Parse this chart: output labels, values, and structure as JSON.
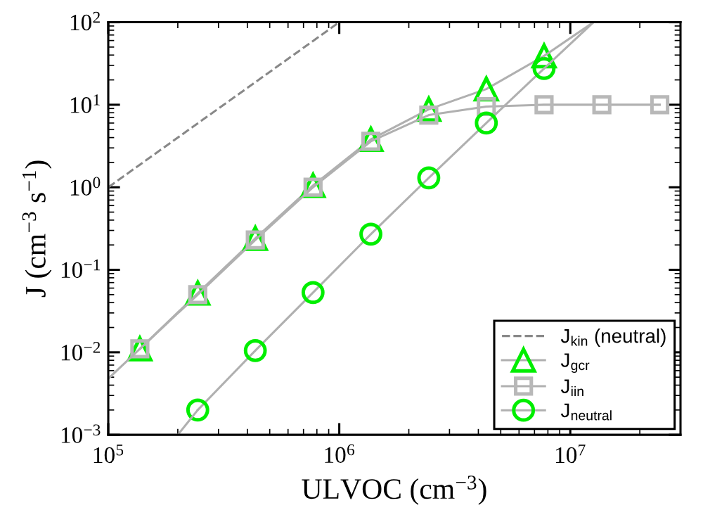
{
  "chart_data": {
    "type": "line",
    "log": "xy",
    "xlabel": "ULVOC (cm$^{−3}$)",
    "ylabel": "J (cm$^{−3}$ s$^{−1}$)",
    "xlim": [
      100000,
      30000000
    ],
    "ylim": [
      0.001,
      100
    ],
    "xticks": [
      {
        "value": 100000,
        "label": "10$^{5}$"
      },
      {
        "value": 1000000,
        "label": "10$^{6}$"
      },
      {
        "value": 10000000,
        "label": "10$^{7}$"
      }
    ],
    "yticks": [
      {
        "value": 0.001,
        "label": "10$^{−3}$"
      },
      {
        "value": 0.01,
        "label": "10$^{−2}$"
      },
      {
        "value": 0.1,
        "label": "10$^{−1}$"
      },
      {
        "value": 1,
        "label": "10$^{0}$"
      },
      {
        "value": 10,
        "label": "10$^{1}$"
      },
      {
        "value": 100,
        "label": "10$^{2}$"
      }
    ],
    "grid": false,
    "legend": "bottom right",
    "series": [
      {
        "name": "J$_{kin}$ (neutral)",
        "color": "#888888",
        "line_style": "dashed",
        "marker": "none",
        "x": [
          100000,
          1000000
        ],
        "values": [
          1,
          100
        ]
      },
      {
        "name": "J$_{gcr}$",
        "color": "#00ee00",
        "marker": "triangle",
        "x": [
          137000,
          244000,
          433000,
          770000,
          1370000,
          2440000,
          4330000,
          7700000
        ],
        "values": [
          0.011,
          0.052,
          0.24,
          1.05,
          3.8,
          8.8,
          15.5,
          39
        ]
      },
      {
        "name": "J$_{iin}$",
        "color": "#b8b8b8",
        "marker": "square",
        "x": [
          137000,
          244000,
          433000,
          770000,
          1370000,
          2440000,
          4330000,
          7700000,
          13700000,
          24400000
        ],
        "values": [
          0.011,
          0.05,
          0.23,
          1.0,
          3.6,
          7.5,
          9.5,
          10,
          10,
          10
        ]
      },
      {
        "name": "J$_{neutral}$",
        "color": "#00ee00",
        "marker": "circle",
        "x": [
          244000,
          433000,
          770000,
          1370000,
          2440000,
          4330000,
          7700000
        ],
        "values": [
          0.002,
          0.0105,
          0.053,
          0.27,
          1.3,
          6.0,
          27.5
        ]
      },
      {
        "color": "#b0b0b0",
        "marker": "none",
        "x": [
          100000,
          137000
        ],
        "values": [
          0.0048,
          0.011
        ]
      },
      {
        "color": "#b0b0b0",
        "marker": "none",
        "x": [
          200000,
          244000
        ],
        "values": [
          0.001,
          0.002
        ]
      },
      {
        "color": "#b0b0b0",
        "marker": "none",
        "x": [
          7700000,
          12600000
        ],
        "values": [
          39,
          100
        ]
      },
      {
        "color": "#b0b0b0",
        "marker": "none",
        "x": [
          7700000,
          12600000
        ],
        "values": [
          27.5,
          100
        ]
      }
    ]
  }
}
